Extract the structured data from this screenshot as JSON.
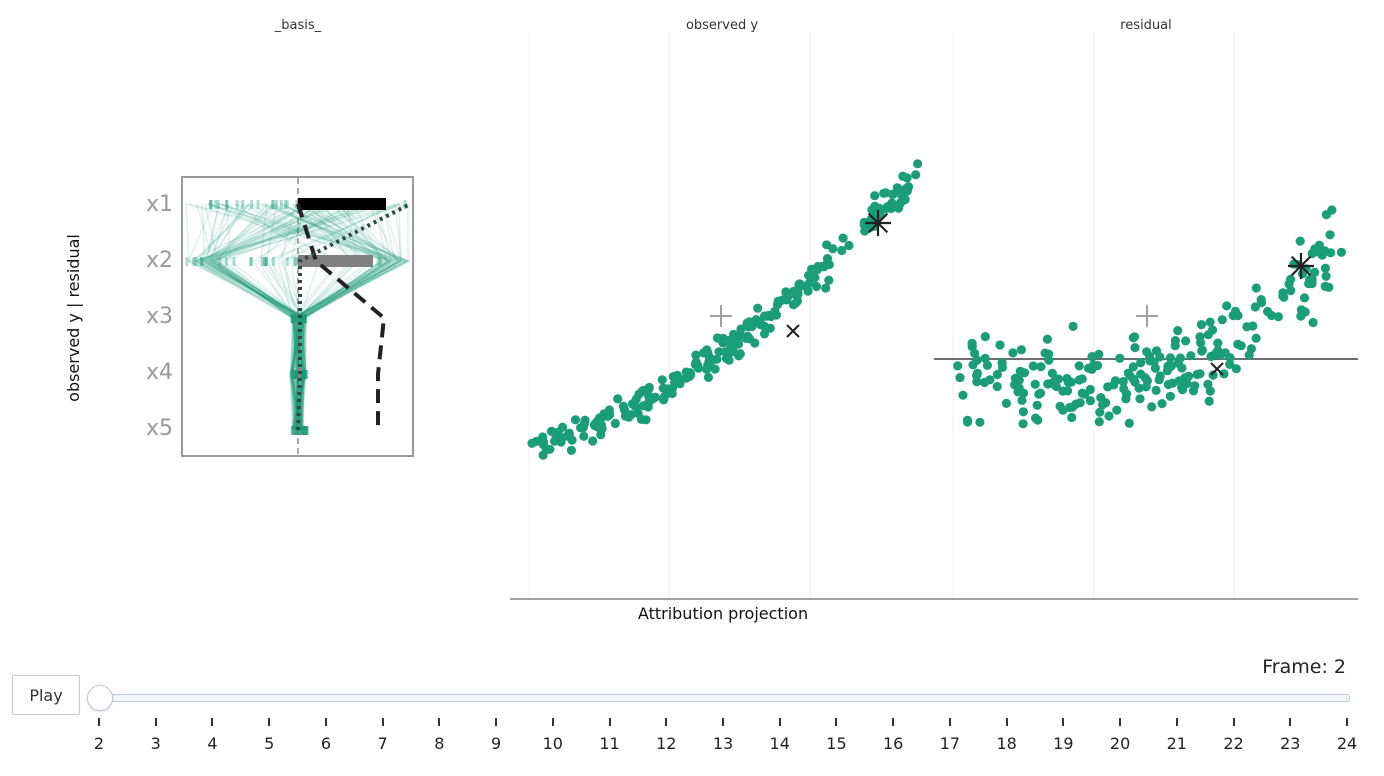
{
  "chart_data": {
    "type": "scatter",
    "panels": [
      {
        "title": "_basis_"
      },
      {
        "title": "observed y"
      },
      {
        "title": "residual"
      }
    ],
    "ylabel": "observed y | residual",
    "xlabel": "Attribution projection",
    "variables": [
      "x1",
      "x2",
      "x3",
      "x4",
      "x5"
    ],
    "basis": {
      "bars": [
        {
          "variable": "x1",
          "value": 0.88,
          "color": "#000000"
        },
        {
          "variable": "x2",
          "value": 0.75,
          "color": "#808080"
        },
        {
          "variable": "x3",
          "value": 0.0,
          "color": "#808080"
        },
        {
          "variable": "x4",
          "value": 0.03,
          "color": "#808080"
        },
        {
          "variable": "x5",
          "value": 0.0,
          "color": "#808080"
        }
      ],
      "dashed_path": [
        0.0,
        0.18,
        0.86,
        0.8,
        0.8
      ],
      "dotted_path": [
        0.0,
        0.02,
        0.02,
        0.02,
        1.12
      ]
    },
    "grid": true,
    "zero_line_panel": "residual",
    "colors": {
      "points": "#1a9e77",
      "grid": "#eeeeee",
      "zeroline": "#6e6e6e",
      "marker": "#222222",
      "cross": "#a0a0a0"
    },
    "frame": {
      "label": "Frame: 2",
      "current": 2
    },
    "slider": {
      "ticks": [
        "2",
        "3",
        "4",
        "5",
        "6",
        "7",
        "8",
        "9",
        "10",
        "11",
        "12",
        "13",
        "14",
        "15",
        "16",
        "17",
        "18",
        "19",
        "20",
        "21",
        "22",
        "23",
        "24"
      ]
    },
    "controls": {
      "play_label": "Play"
    }
  }
}
